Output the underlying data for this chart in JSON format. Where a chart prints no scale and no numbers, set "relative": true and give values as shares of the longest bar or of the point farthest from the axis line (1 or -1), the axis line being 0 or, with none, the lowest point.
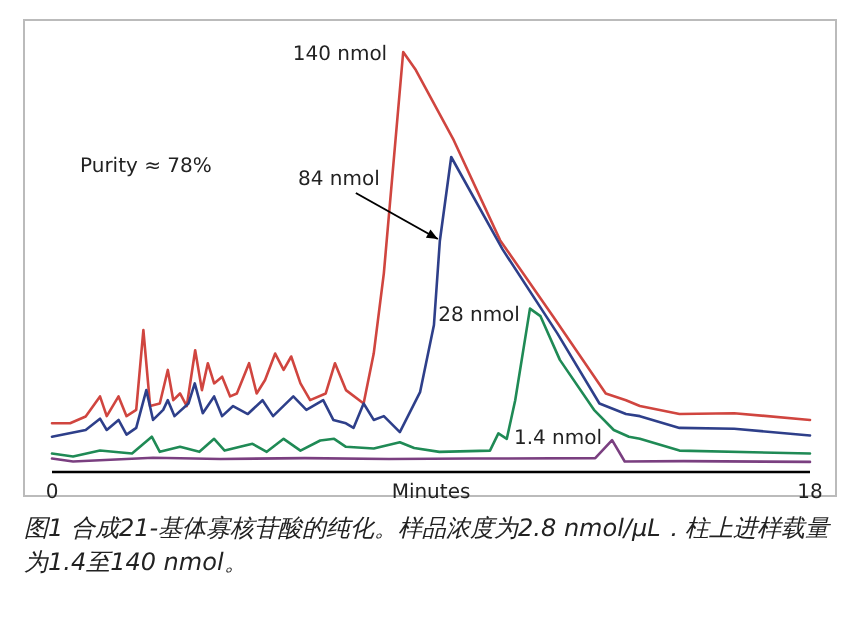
{
  "chart_data": {
    "type": "line",
    "relative": true,
    "xlabel": "Minutes",
    "xlim": [
      0,
      18
    ],
    "xticks": [
      0,
      18
    ],
    "series": [
      {
        "color": "#d0453f",
        "x": [
          0,
          0.43,
          0.8,
          1.14,
          1.3,
          1.58,
          1.77,
          2.0,
          2.17,
          2.33,
          2.56,
          2.75,
          2.88,
          3.04,
          3.2,
          3.4,
          3.56,
          3.7,
          3.85,
          4.04,
          4.23,
          4.39,
          4.68,
          4.86,
          5.06,
          5.3,
          5.5,
          5.68,
          5.9,
          6.13,
          6.5,
          6.72,
          6.98,
          7.4,
          7.64,
          7.88,
          8.34,
          8.64,
          9.54,
          10.64,
          11.9,
          13.15,
          13.63,
          13.96,
          14.9,
          16.2,
          18
        ],
        "values": [
          0.116,
          0.116,
          0.132,
          0.18,
          0.133,
          0.18,
          0.133,
          0.148,
          0.338,
          0.157,
          0.163,
          0.243,
          0.171,
          0.187,
          0.157,
          0.29,
          0.195,
          0.259,
          0.211,
          0.227,
          0.18,
          0.187,
          0.259,
          0.187,
          0.219,
          0.282,
          0.243,
          0.275,
          0.211,
          0.171,
          0.187,
          0.259,
          0.195,
          0.163,
          0.282,
          0.473,
          1.0,
          0.957,
          0.79,
          0.552,
          0.37,
          0.187,
          0.171,
          0.157,
          0.138,
          0.14,
          0.124
        ]
      },
      {
        "color": "#2e3f8a",
        "x": [
          0,
          0.8,
          1.14,
          1.3,
          1.58,
          1.77,
          2.0,
          2.24,
          2.4,
          2.64,
          2.75,
          2.91,
          3.24,
          3.39,
          3.58,
          3.85,
          4.04,
          4.3,
          4.65,
          5.0,
          5.25,
          5.73,
          6.04,
          6.44,
          6.68,
          6.98,
          7.16,
          7.4,
          7.64,
          7.88,
          8.26,
          8.74,
          9.07,
          9.21,
          9.48,
          10.7,
          12.0,
          13.0,
          13.63,
          13.96,
          14.9,
          16.2,
          18
        ],
        "values": [
          0.084,
          0.1,
          0.127,
          0.1,
          0.124,
          0.089,
          0.105,
          0.195,
          0.124,
          0.148,
          0.171,
          0.133,
          0.163,
          0.211,
          0.14,
          0.18,
          0.133,
          0.157,
          0.138,
          0.171,
          0.133,
          0.18,
          0.148,
          0.171,
          0.124,
          0.116,
          0.105,
          0.163,
          0.124,
          0.133,
          0.095,
          0.19,
          0.35,
          0.55,
          0.75,
          0.53,
          0.33,
          0.163,
          0.138,
          0.133,
          0.105,
          0.103,
          0.087
        ]
      },
      {
        "color": "#1f8a55",
        "x": [
          0,
          0.5,
          1.14,
          1.9,
          2.37,
          2.56,
          3.04,
          3.5,
          3.85,
          4.1,
          4.76,
          5.1,
          5.5,
          5.9,
          6.37,
          6.7,
          6.98,
          7.64,
          8.26,
          8.6,
          9.2,
          10.4,
          10.6,
          10.8,
          11.0,
          11.35,
          11.6,
          12.06,
          12.87,
          13.34,
          13.7,
          13.96,
          14.9,
          18
        ],
        "values": [
          0.044,
          0.037,
          0.051,
          0.044,
          0.084,
          0.048,
          0.06,
          0.048,
          0.079,
          0.051,
          0.067,
          0.048,
          0.079,
          0.051,
          0.075,
          0.079,
          0.06,
          0.056,
          0.071,
          0.057,
          0.048,
          0.051,
          0.092,
          0.079,
          0.171,
          0.389,
          0.371,
          0.267,
          0.148,
          0.1,
          0.084,
          0.079,
          0.051,
          0.044
        ]
      },
      {
        "color": "#7a3f80",
        "x": [
          0,
          0.5,
          2.4,
          4.0,
          6.0,
          8.0,
          10.0,
          12.9,
          13.3,
          13.6,
          15.0,
          18
        ],
        "values": [
          0.032,
          0.025,
          0.034,
          0.031,
          0.033,
          0.031,
          0.032,
          0.033,
          0.076,
          0.025,
          0.026,
          0.024
        ]
      }
    ],
    "annotations": [
      {
        "text": "140 nmol",
        "x": 8.34,
        "y": 1.0
      },
      {
        "text": "84 nmol",
        "x": 9.21,
        "y": 0.55
      },
      {
        "text": "28 nmol",
        "x": 11.35,
        "y": 0.389
      },
      {
        "text": "1.4 nmol",
        "x": 13.3,
        "y": 0.076
      },
      "Purity ≈ 78%",
      "图1 合成21-基体寡核苷酸的纯化。样品浓度为2.8 nmol/μL．柱上进样载量为1.4至140 nmol。"
    ]
  }
}
